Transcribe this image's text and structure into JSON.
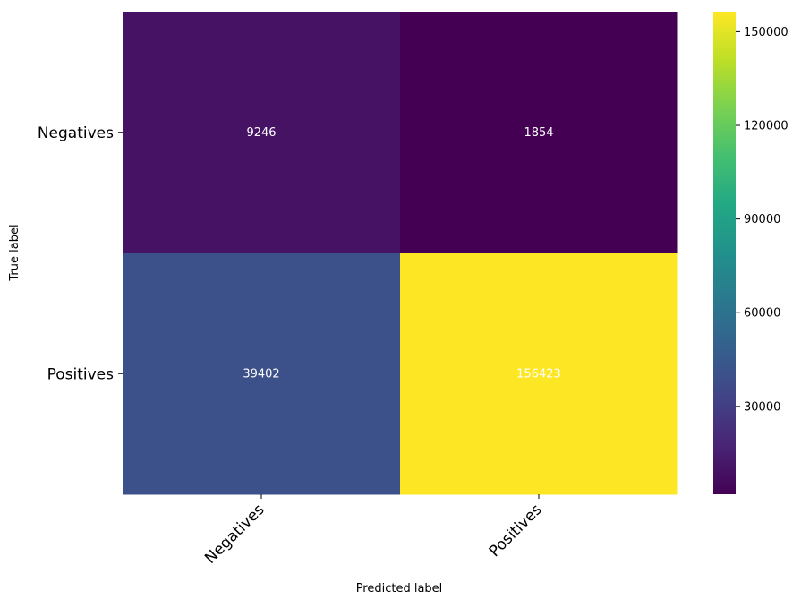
{
  "chart_data": {
    "type": "heatmap",
    "title": "",
    "xlabel": "Predicted label",
    "ylabel": "True label",
    "x_categories": [
      "Negatives",
      "Positives"
    ],
    "y_categories": [
      "Negatives",
      "Positives"
    ],
    "values": [
      [
        9246,
        1854
      ],
      [
        39402,
        156423
      ]
    ],
    "colormap": "viridis",
    "colorbar": {
      "min": 1854,
      "max": 156423,
      "ticks": [
        30000,
        60000,
        90000,
        120000,
        150000
      ]
    },
    "cell_text_color": "#ffffff",
    "grid": false
  }
}
